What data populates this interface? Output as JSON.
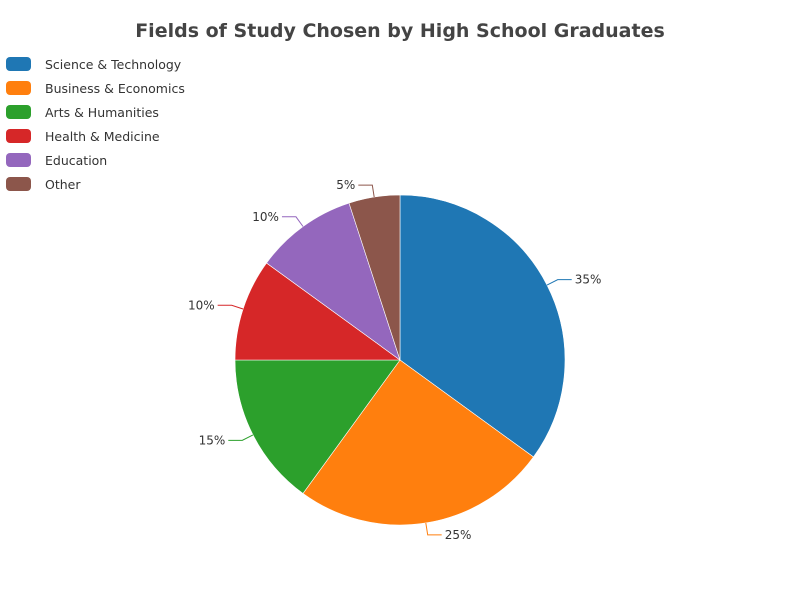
{
  "chart_data": {
    "type": "pie",
    "title": "Fields of Study Chosen by High School Graduates",
    "legend_position": "top-left",
    "slices": [
      {
        "label": "Science & Technology",
        "value": 35,
        "display": "35%",
        "color": "#1f77b4"
      },
      {
        "label": "Business & Economics",
        "value": 25,
        "display": "25%",
        "color": "#ff7f0e"
      },
      {
        "label": "Arts & Humanities",
        "value": 15,
        "display": "15%",
        "color": "#2ca02c"
      },
      {
        "label": "Health & Medicine",
        "value": 10,
        "display": "10%",
        "color": "#d62728"
      },
      {
        "label": "Education",
        "value": 10,
        "display": "10%",
        "color": "#9467bd"
      },
      {
        "label": "Other",
        "value": 5,
        "display": "5%",
        "color": "#8c564b"
      }
    ]
  }
}
